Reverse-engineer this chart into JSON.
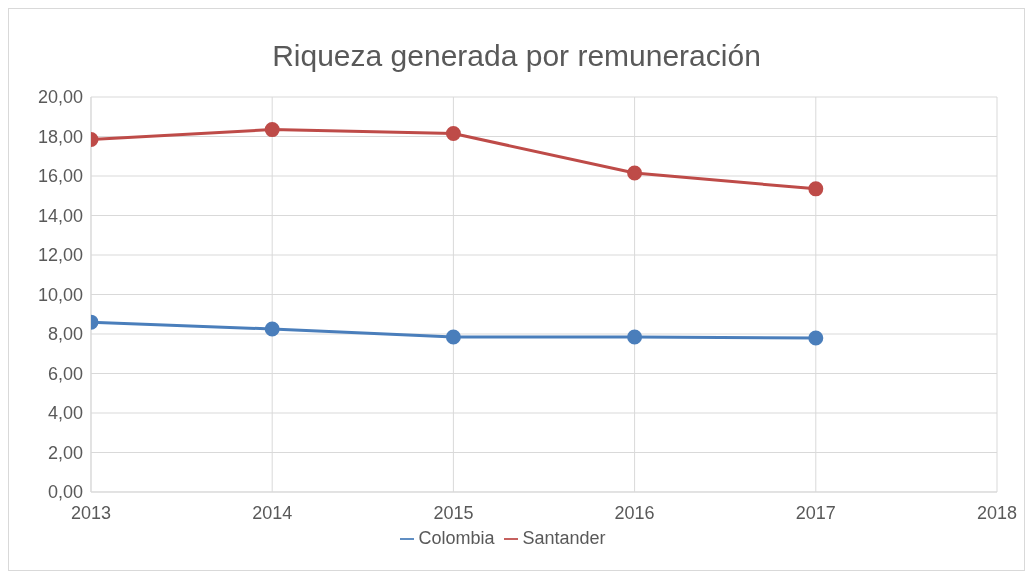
{
  "chart_data": {
    "type": "line",
    "title": "Riqueza generada por remuneración",
    "x": [
      2013,
      2014,
      2015,
      2016,
      2017
    ],
    "series": [
      {
        "name": "Colombia",
        "color": "#4a7ebb",
        "values": [
          8.6,
          8.25,
          7.85,
          7.85,
          7.8
        ]
      },
      {
        "name": "Santander",
        "color": "#be4b48",
        "values": [
          17.85,
          18.35,
          18.15,
          16.15,
          15.35
        ]
      }
    ],
    "xlim": [
      2013,
      2018
    ],
    "xticks": [
      2013,
      2014,
      2015,
      2016,
      2017,
      2018
    ],
    "ylim": [
      0,
      20
    ],
    "yticks": [
      {
        "value": 0,
        "label": "0,00"
      },
      {
        "value": 2,
        "label": "2,00"
      },
      {
        "value": 4,
        "label": "4,00"
      },
      {
        "value": 6,
        "label": "6,00"
      },
      {
        "value": 8,
        "label": "8,00"
      },
      {
        "value": 10,
        "label": "10,00"
      },
      {
        "value": 12,
        "label": "12,00"
      },
      {
        "value": 14,
        "label": "14,00"
      },
      {
        "value": 16,
        "label": "16,00"
      },
      {
        "value": 18,
        "label": "18,00"
      },
      {
        "value": 20,
        "label": "20,00"
      }
    ],
    "grid": true,
    "legend": "bottom",
    "marker": "circle",
    "line_style": "solid"
  }
}
